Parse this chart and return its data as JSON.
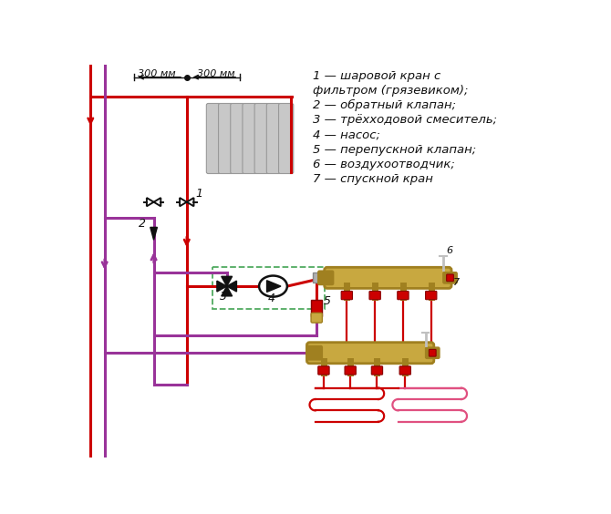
{
  "legend_lines": [
    "1 — шаровой кран с",
    "фильтром (грязевиком);",
    "2 — обратный клапан;",
    "3 — трёхходовой смеситель;",
    "4 — насос;",
    "5 — перепускной клапан;",
    "6 — воздухоотводчик;",
    "7 — спускной кран"
  ],
  "dim_left": "300 мм",
  "dim_right": "300 мм",
  "red": "#cc0000",
  "pink": "#e05080",
  "purple": "#993399",
  "gold": "#c8a840",
  "dark_gold": "#a08020",
  "black": "#111111",
  "white": "#ffffff",
  "gray_lt": "#cccccc",
  "gray_md": "#999999",
  "dashed": "#50aa60",
  "bg": "#ffffff"
}
